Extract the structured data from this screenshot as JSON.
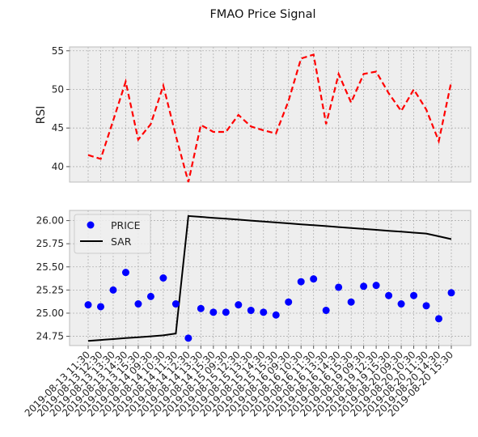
{
  "figure": {
    "title": "FMAO Price Signal"
  },
  "chart_data": [
    {
      "type": "line",
      "title": "",
      "ylabel": "RSI",
      "ylim": [
        38,
        55.5
      ],
      "yticks": [
        40,
        45,
        50,
        55
      ],
      "grid": true,
      "series": [
        {
          "values": [
            41.5,
            41.0,
            46.0,
            51.0,
            43.5,
            45.5,
            50.5,
            44.0,
            38.0,
            45.4,
            44.5,
            44.5,
            46.7,
            45.2,
            44.7,
            44.3,
            48.5,
            54.0,
            54.5,
            45.5,
            52.0,
            48.3,
            52.0,
            52.3,
            49.5,
            47.2,
            50.0,
            47.4,
            43.3,
            51.0
          ],
          "color": "#ff0000",
          "style": "dashed"
        }
      ]
    },
    {
      "type": "scatter",
      "title": "",
      "ylabel": "",
      "ylim": [
        24.65,
        26.11
      ],
      "yticks": [
        "24.75",
        "25.00",
        "25.25",
        "25.50",
        "25.75",
        "26.00"
      ],
      "grid": true,
      "legend_position": "top-left",
      "categories": [
        "2019-08-13 11:30",
        "2019-08-13 12:30",
        "2019-08-13 13:30",
        "2019-08-13 14:30",
        "2019-08-13 15:30",
        "2019-08-14 09:30",
        "2019-08-14 10:30",
        "2019-08-14 11:30",
        "2019-08-14 12:30",
        "2019-08-14 13:30",
        "2019-08-14 15:30",
        "2019-08-15 09:30",
        "2019-08-15 12:30",
        "2019-08-15 13:30",
        "2019-08-15 14:30",
        "2019-08-15 15:30",
        "2019-08-16 09:30",
        "2019-08-16 10:30",
        "2019-08-16 11:30",
        "2019-08-16 13:30",
        "2019-08-16 14:30",
        "2019-08-16 15:30",
        "2019-08-19 09:30",
        "2019-08-19 12:30",
        "2019-08-19 15:30",
        "2019-08-20 09:30",
        "2019-08-20 10:30",
        "2019-08-20 11:30",
        "2019-08-20 14:30",
        "2019-08-20 15:30"
      ],
      "series": [
        {
          "name": "PRICE",
          "kind": "scatter",
          "color": "#0000ff",
          "values": [
            25.09,
            25.07,
            25.25,
            25.44,
            25.1,
            25.18,
            25.38,
            25.1,
            24.73,
            25.05,
            25.01,
            25.01,
            25.09,
            25.03,
            25.01,
            24.98,
            25.12,
            25.34,
            25.37,
            25.03,
            25.28,
            25.12,
            25.29,
            25.3,
            25.19,
            25.1,
            25.19,
            25.08,
            24.94,
            25.22
          ]
        },
        {
          "name": "SAR",
          "kind": "line",
          "color": "#000000",
          "values": [
            24.7,
            24.71,
            24.72,
            24.73,
            24.74,
            24.75,
            24.76,
            24.78,
            26.05,
            26.04,
            26.03,
            26.02,
            26.01,
            26.0,
            25.99,
            25.98,
            25.97,
            25.96,
            25.95,
            25.94,
            25.93,
            25.92,
            25.91,
            25.9,
            25.89,
            25.88,
            25.87,
            25.86,
            25.83,
            25.8
          ]
        }
      ]
    }
  ]
}
